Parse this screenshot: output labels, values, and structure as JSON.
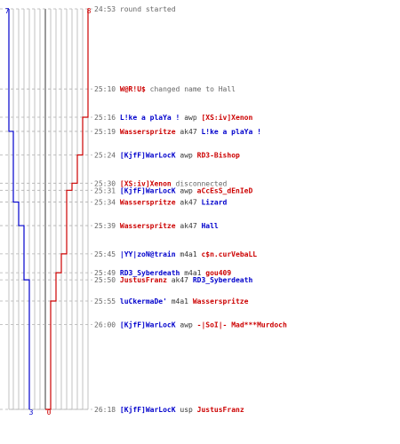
{
  "chart_data": {
    "type": "line",
    "title": "",
    "colors": {
      "blue_team": "#0000cc",
      "red_team": "#cc0000",
      "time": "#666666",
      "neutral_text": "#666666",
      "weapon_text": "#333333",
      "grid": "#c0c0c0",
      "center_line": "#808080"
    },
    "team_counts": {
      "blue_start": "7",
      "red_start": "8",
      "blue_end": "3",
      "red_end": "0"
    },
    "series": [
      {
        "team": "blue",
        "steps": [
          {
            "time": "24:53",
            "value": 7
          },
          {
            "time": "25:19",
            "value": 6
          },
          {
            "time": "25:34",
            "value": 5
          },
          {
            "time": "25:39",
            "value": 4
          },
          {
            "time": "25:50",
            "value": 3
          }
        ]
      },
      {
        "team": "red",
        "steps": [
          {
            "time": "24:53",
            "value": 8
          },
          {
            "time": "25:16",
            "value": 7
          },
          {
            "time": "25:24",
            "value": 6
          },
          {
            "time": "25:30",
            "value": 5
          },
          {
            "time": "25:31",
            "value": 4
          },
          {
            "time": "25:45",
            "value": 3
          },
          {
            "time": "25:49",
            "value": 2
          },
          {
            "time": "25:55",
            "value": 1
          },
          {
            "time": "26:18",
            "value": 0
          }
        ]
      }
    ],
    "events": [
      {
        "time": "24:53",
        "kind": "msg",
        "text": "round started"
      },
      {
        "time": "25:10",
        "kind": "rename",
        "actor": "W@R!U$",
        "actor_team": "red",
        "text": "changed name to",
        "target": "Hall",
        "target_team": "red"
      },
      {
        "time": "25:16",
        "kind": "kill",
        "actor": "L!ke a plaYa !",
        "actor_team": "blue",
        "weapon": "awp",
        "target": "[XS:iv]Xenon",
        "target_team": "red"
      },
      {
        "time": "25:19",
        "kind": "kill",
        "actor": "Wasserspritze",
        "actor_team": "red",
        "weapon": "ak47",
        "target": "L!ke a plaYa !",
        "target_team": "blue"
      },
      {
        "time": "25:24",
        "kind": "kill",
        "actor": "[KjfF]WarLocK",
        "actor_team": "blue",
        "weapon": "awp",
        "target": "RD3-Bishop",
        "target_team": "red"
      },
      {
        "time": "25:30",
        "kind": "disc",
        "actor": "[XS:iv]Xenon",
        "actor_team": "red",
        "text": "disconnected"
      },
      {
        "time": "25:31",
        "kind": "kill",
        "actor": "[KjfF]WarLocK",
        "actor_team": "blue",
        "weapon": "awp",
        "target": "aCcEsS_dEnIeD",
        "target_team": "red"
      },
      {
        "time": "25:34",
        "kind": "kill",
        "actor": "Wasserspritze",
        "actor_team": "red",
        "weapon": "ak47",
        "target": "Lizard",
        "target_team": "blue"
      },
      {
        "time": "25:39",
        "kind": "kill",
        "actor": "Wasserspritze",
        "actor_team": "red",
        "weapon": "ak47",
        "target": "Hall",
        "target_team": "blue"
      },
      {
        "time": "25:45",
        "kind": "kill",
        "actor": "|YY|zoN@train",
        "actor_team": "blue",
        "weapon": "m4a1",
        "target": "c$n.curVebaLL",
        "target_team": "red"
      },
      {
        "time": "25:49",
        "kind": "kill",
        "actor": "RD3_Syberdeath",
        "actor_team": "blue",
        "weapon": "m4a1",
        "target": "gou409",
        "target_team": "red"
      },
      {
        "time": "25:50",
        "kind": "kill",
        "actor": "JustusFranz",
        "actor_team": "red",
        "weapon": "ak47",
        "target": "RD3_Syberdeath",
        "target_team": "blue"
      },
      {
        "time": "25:55",
        "kind": "kill",
        "actor": "luCkermaDe'",
        "actor_team": "blue",
        "weapon": "m4a1",
        "target": "Wasserspritze",
        "target_team": "red"
      },
      {
        "time": "26:00",
        "kind": "kill",
        "actor": "[KjfF]WarLocK",
        "actor_team": "blue",
        "weapon": "awp",
        "target": "-|SoI|- Mad***Murdoch",
        "target_team": "red"
      },
      {
        "time": "26:18",
        "kind": "kill",
        "actor": "[KjfF]WarLocK",
        "actor_team": "blue",
        "weapon": "usp",
        "target": "JustusFranz",
        "target_team": "red"
      }
    ]
  }
}
